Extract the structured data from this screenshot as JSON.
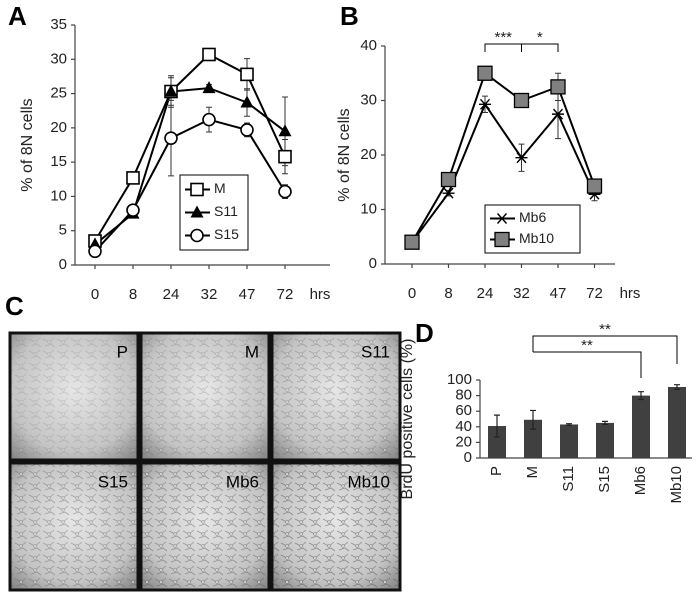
{
  "chart_data": [
    {
      "type": "line",
      "panel": "A",
      "y_label": "% of 8N cells",
      "x_label": "hrs",
      "categories": [
        "0",
        "8",
        "24",
        "32",
        "47",
        "72"
      ],
      "ylim": [
        0,
        35
      ],
      "yticks": [
        0,
        5,
        10,
        15,
        20,
        25,
        30,
        35
      ],
      "series": [
        {
          "name": "M",
          "color": "#000000",
          "marker": "square-open",
          "values": [
            3.5,
            12.7,
            25.3,
            30.7,
            27.8,
            15.8
          ],
          "errors": [
            0.5,
            0.5,
            2,
            0.7,
            2.3,
            2.5
          ]
        },
        {
          "name": "S11",
          "color": "#000000",
          "marker": "triangle",
          "values": [
            3,
            7.5,
            25.3,
            25.8,
            23.7,
            19.5
          ],
          "errors": [
            0.3,
            0.5,
            2.3,
            0.5,
            2,
            5
          ]
        },
        {
          "name": "S15",
          "color": "#000000",
          "marker": "circle-open",
          "values": [
            2,
            8,
            18.5,
            21.2,
            19.7,
            10.7
          ],
          "errors": [
            0.3,
            0.5,
            5.5,
            1.8,
            1,
            1
          ]
        }
      ]
    },
    {
      "type": "line",
      "panel": "B",
      "y_label": "% of 8N cells",
      "x_label": "hrs",
      "categories": [
        "0",
        "8",
        "24",
        "32",
        "47",
        "72"
      ],
      "ylim": [
        0,
        40
      ],
      "yticks": [
        0,
        10,
        20,
        30,
        40
      ],
      "series": [
        {
          "name": "Mb6",
          "color": "#000000",
          "marker": "asterisk",
          "values": [
            4,
            13,
            29.3,
            19.5,
            27.5,
            12.8
          ],
          "errors": [
            0.3,
            0.5,
            1.5,
            2.5,
            4.5,
            1.2
          ]
        },
        {
          "name": "Mb10",
          "color": "#000000",
          "marker": "square-gray",
          "values": [
            4,
            15.5,
            35,
            30,
            32.5,
            14.3
          ],
          "errors": [
            0.3,
            0.5,
            0.5,
            0.5,
            2.5,
            1
          ]
        }
      ],
      "annotations": [
        "***",
        "*"
      ]
    },
    {
      "type": "bar",
      "panel": "D",
      "y_label": "BrdU positive cells (%)",
      "color": "#404040",
      "categories": [
        "P",
        "M",
        "S11",
        "S15",
        "Mb6",
        "Mb10"
      ],
      "values": [
        41,
        49,
        43,
        45,
        80,
        91
      ],
      "errors": [
        14,
        12,
        1,
        2,
        5,
        3
      ],
      "ylim": [
        0,
        100
      ],
      "yticks": [
        0,
        20,
        40,
        60,
        80,
        100
      ],
      "annotations": [
        "**",
        "**"
      ]
    }
  ],
  "image_panel": {
    "panel": "C",
    "labels": [
      "P",
      "M",
      "S11",
      "S15",
      "Mb6",
      "Mb10"
    ]
  }
}
